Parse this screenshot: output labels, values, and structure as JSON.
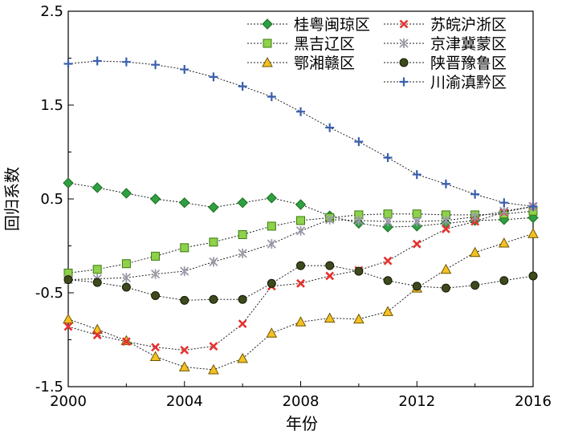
{
  "chart_data": {
    "type": "line",
    "title": "",
    "xlabel": "年份",
    "ylabel": "回归系数",
    "xlim": [
      2000,
      2016
    ],
    "ylim": [
      -1.5,
      2.5
    ],
    "x_ticks": [
      2000,
      2004,
      2008,
      2012,
      2016
    ],
    "x_tick_labels": [
      "2000",
      "2004",
      "2008",
      "2012",
      "2016"
    ],
    "y_ticks": [
      -1.5,
      -0.5,
      0.5,
      1.5,
      2.5
    ],
    "y_tick_labels": [
      "-1.5",
      "-0.5",
      "0.5",
      "1.5",
      "2.5"
    ],
    "grid": false,
    "legend_position": "top-right",
    "x": [
      2000,
      2001,
      2002,
      2003,
      2004,
      2005,
      2006,
      2007,
      2008,
      2009,
      2010,
      2011,
      2012,
      2013,
      2014,
      2015,
      2016
    ],
    "series": [
      {
        "name": "桂粤闽琼区",
        "marker": "diamond",
        "color": "#2ea043",
        "edge": "#1a6e1a",
        "values": [
          0.67,
          0.62,
          0.56,
          0.5,
          0.46,
          0.41,
          0.46,
          0.51,
          0.44,
          0.32,
          0.24,
          0.2,
          0.21,
          0.24,
          0.27,
          0.28,
          0.3
        ]
      },
      {
        "name": "黑吉辽区",
        "marker": "square",
        "color": "#8ed14b",
        "edge": "#3d7a10",
        "values": [
          -0.29,
          -0.25,
          -0.19,
          -0.11,
          -0.02,
          0.04,
          0.12,
          0.21,
          0.27,
          0.3,
          0.33,
          0.34,
          0.34,
          0.33,
          0.33,
          0.34,
          0.37
        ]
      },
      {
        "name": "鄂湘赣区",
        "marker": "triangle",
        "color": "#f5c022",
        "edge": "#6b5600",
        "values": [
          -0.78,
          -0.89,
          -1.01,
          -1.18,
          -1.29,
          -1.32,
          -1.2,
          -0.93,
          -0.81,
          -0.77,
          -0.78,
          -0.7,
          -0.45,
          -0.25,
          -0.07,
          0.03,
          0.13
        ]
      },
      {
        "name": "苏皖沪浙区",
        "marker": "x",
        "color": "#e8312f",
        "edge": "#e8312f",
        "values": [
          -0.86,
          -0.95,
          -1.02,
          -1.08,
          -1.11,
          -1.07,
          -0.83,
          -0.43,
          -0.4,
          -0.32,
          -0.26,
          -0.16,
          0.02,
          0.18,
          0.26,
          0.36,
          0.42
        ]
      },
      {
        "name": "京津冀蒙区",
        "marker": "star",
        "color": "#9a9aa8",
        "edge": "#7a7a88",
        "values": [
          -0.36,
          -0.35,
          -0.34,
          -0.3,
          -0.27,
          -0.17,
          -0.08,
          0.02,
          0.16,
          0.28,
          0.27,
          0.26,
          0.26,
          0.27,
          0.31,
          0.37,
          0.42
        ]
      },
      {
        "name": "陕晋豫鲁区",
        "marker": "circle",
        "color": "#3d4a1c",
        "edge": "#151a05",
        "values": [
          -0.36,
          -0.39,
          -0.44,
          -0.53,
          -0.58,
          -0.57,
          -0.57,
          -0.4,
          -0.21,
          -0.21,
          -0.27,
          -0.37,
          -0.43,
          -0.45,
          -0.42,
          -0.37,
          -0.32
        ]
      },
      {
        "name": "川渝滇黔区",
        "marker": "plus",
        "color": "#3a5fb0",
        "edge": "#3a5fb0",
        "values": [
          1.94,
          1.97,
          1.96,
          1.93,
          1.88,
          1.8,
          1.7,
          1.59,
          1.43,
          1.26,
          1.11,
          0.94,
          0.76,
          0.66,
          0.55,
          0.46,
          0.42
        ]
      }
    ]
  }
}
